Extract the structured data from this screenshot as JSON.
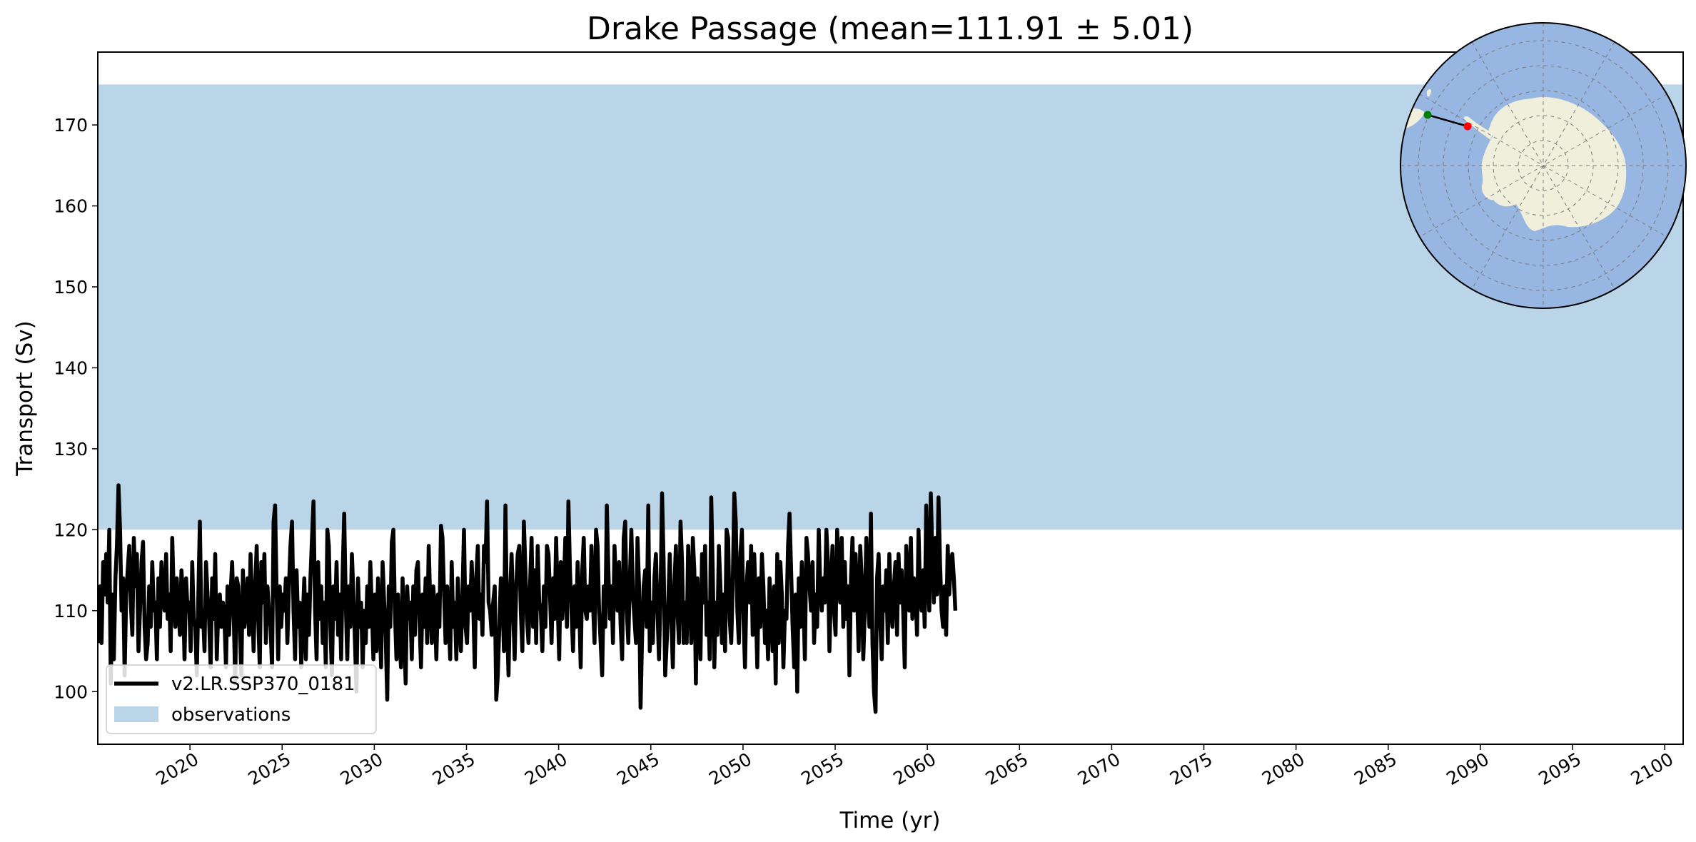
{
  "chart_data": {
    "type": "line",
    "title": "Drake Passage (mean=111.91 ± 5.01)",
    "xlabel": "Time (yr)",
    "ylabel": "Transport (Sv)",
    "xlim": [
      2015,
      2101
    ],
    "ylim": [
      93.5,
      179
    ],
    "x_ticks": [
      2020,
      2025,
      2030,
      2035,
      2040,
      2045,
      2050,
      2055,
      2060,
      2065,
      2070,
      2075,
      2080,
      2085,
      2090,
      2095,
      2100
    ],
    "y_ticks": [
      100,
      110,
      120,
      130,
      140,
      150,
      160,
      170
    ],
    "grid": false,
    "legend_position": "lower-left",
    "observations_band": {
      "name": "observations",
      "y_min": 120,
      "y_max": 175,
      "color": "#bad5e8"
    },
    "series": [
      {
        "name": "v2.LR.SSP370_0181",
        "color": "#000000",
        "x_start": 2015.04,
        "x_step": 0.0833,
        "values": [
          106,
          113,
          106,
          116,
          112,
          117,
          111,
          120,
          101,
          112,
          104,
          114,
          118,
          125.5,
          120,
          110,
          114,
          102,
          112,
          115,
          118,
          111,
          107,
          119,
          113,
          117,
          105,
          110,
          116,
          118.5,
          108,
          104,
          106,
          113,
          108,
          116,
          110,
          111,
          104,
          114,
          108,
          116,
          112,
          110,
          117,
          109,
          112,
          105,
          119,
          112,
          108,
          114,
          110,
          107,
          115,
          112,
          104,
          114,
          110,
          111,
          105,
          116,
          109,
          108,
          102,
          112,
          121,
          108,
          110,
          105,
          116,
          112,
          109,
          103,
          114,
          109,
          117,
          104,
          110,
          112,
          108,
          111,
          109,
          103,
          113,
          107,
          112,
          116,
          110,
          101,
          114,
          113,
          108,
          102,
          115,
          108,
          110,
          114,
          107,
          117,
          111,
          105,
          113,
          118,
          109,
          103,
          116,
          111,
          117,
          106,
          113,
          110,
          108,
          103,
          121,
          123,
          112,
          104,
          113,
          108,
          112,
          110,
          114,
          106,
          113,
          118,
          121,
          110,
          104,
          115,
          108,
          111,
          103,
          109,
          114,
          104,
          112,
          107,
          114,
          119,
          123.5,
          110,
          104,
          116,
          109,
          113,
          106,
          111,
          103,
          120,
          118,
          108,
          102,
          113,
          109,
          116,
          107,
          112,
          104,
          115,
          122,
          111,
          104,
          113,
          108,
          117,
          112,
          106,
          100,
          114,
          108,
          111,
          103,
          110,
          106,
          113,
          108,
          116,
          110,
          104,
          112,
          105,
          114,
          109,
          103,
          116,
          111,
          107,
          99,
          113,
          108,
          118.5,
          120,
          110,
          104,
          112,
          106,
          103,
          114,
          108,
          101,
          113,
          109,
          111,
          104,
          113,
          107,
          115,
          116,
          109,
          103,
          112,
          108,
          114,
          106,
          118,
          111,
          106,
          113,
          110,
          104,
          112,
          108,
          120.5,
          119,
          112,
          106,
          113,
          109,
          104,
          116,
          108,
          111,
          104,
          114,
          109,
          105,
          112,
          120,
          108,
          106,
          113,
          110,
          116,
          111,
          103,
          114,
          118,
          109,
          112,
          107,
          118,
          116,
          123.5,
          111,
          110,
          107,
          111,
          113,
          99,
          102,
          108,
          114,
          112,
          105,
          123,
          109,
          102,
          112,
          117,
          110,
          104,
          113,
          117,
          118,
          110,
          105,
          121,
          115,
          109,
          106,
          113,
          119,
          108,
          115,
          106,
          118,
          111,
          110,
          105,
          113,
          108,
          118,
          117,
          112,
          106,
          114,
          109,
          119,
          111,
          104,
          116,
          109,
          113,
          119,
          108,
          123.5,
          115,
          110,
          105,
          113,
          108,
          116,
          111,
          103,
          115,
          119,
          110,
          109,
          113,
          110,
          118,
          111,
          106,
          120,
          118,
          110,
          106,
          102,
          113,
          108,
          123,
          115,
          109,
          113,
          106,
          118,
          113,
          110,
          116,
          108,
          104,
          119,
          121,
          110,
          106,
          114,
          120,
          112,
          109,
          106,
          119,
          113,
          98,
          107,
          113,
          115,
          108,
          123,
          105,
          111,
          106,
          114,
          117,
          110,
          104,
          112,
          124.5,
          116,
          102,
          106,
          111,
          117,
          109,
          103,
          113,
          118,
          110,
          106,
          121,
          116,
          106,
          111,
          106,
          118,
          113,
          106,
          119,
          115,
          101,
          114,
          109,
          104,
          117,
          111,
          118,
          107,
          111,
          104,
          124,
          115,
          103,
          111,
          107,
          118,
          113,
          106,
          112,
          105,
          120,
          119,
          109,
          106,
          113,
          124.5,
          121,
          110,
          106,
          117,
          120,
          109,
          103,
          113,
          116,
          111,
          118,
          107,
          117,
          111,
          103,
          114,
          108,
          117,
          113,
          106,
          110,
          104,
          114,
          110,
          105,
          113,
          101,
          117,
          106,
          116,
          112,
          103,
          110,
          109,
          118,
          122,
          115,
          108,
          103,
          112,
          100,
          114,
          108,
          116,
          111,
          104,
          119,
          117,
          113,
          110,
          116,
          106,
          112,
          108,
          120,
          113,
          110,
          114,
          111,
          120,
          116,
          105,
          113,
          118,
          110,
          107,
          120,
          115,
          111,
          119,
          108,
          116,
          109,
          113,
          102,
          114,
          119,
          110,
          117,
          112,
          105,
          118,
          114,
          104,
          110,
          119,
          112,
          108,
          122,
          106,
          100,
          97.5,
          114,
          117,
          109,
          104,
          113,
          110,
          115,
          106,
          117,
          111,
          108,
          113,
          116,
          107,
          117,
          111,
          115,
          110,
          103,
          118,
          114,
          110,
          119,
          109,
          114,
          113,
          107,
          120,
          112,
          110,
          115,
          108,
          123,
          114,
          110,
          124.5,
          117,
          111,
          119,
          112,
          124,
          116,
          110,
          108,
          113,
          107,
          118,
          112,
          116,
          117,
          114,
          110
        ]
      }
    ],
    "inset_map": {
      "projection": "south-polar",
      "ocean_color": "#98b6e2",
      "land_color": "#efefdb",
      "section_start_color": "#008000",
      "section_end_color": "#ff0000"
    }
  }
}
